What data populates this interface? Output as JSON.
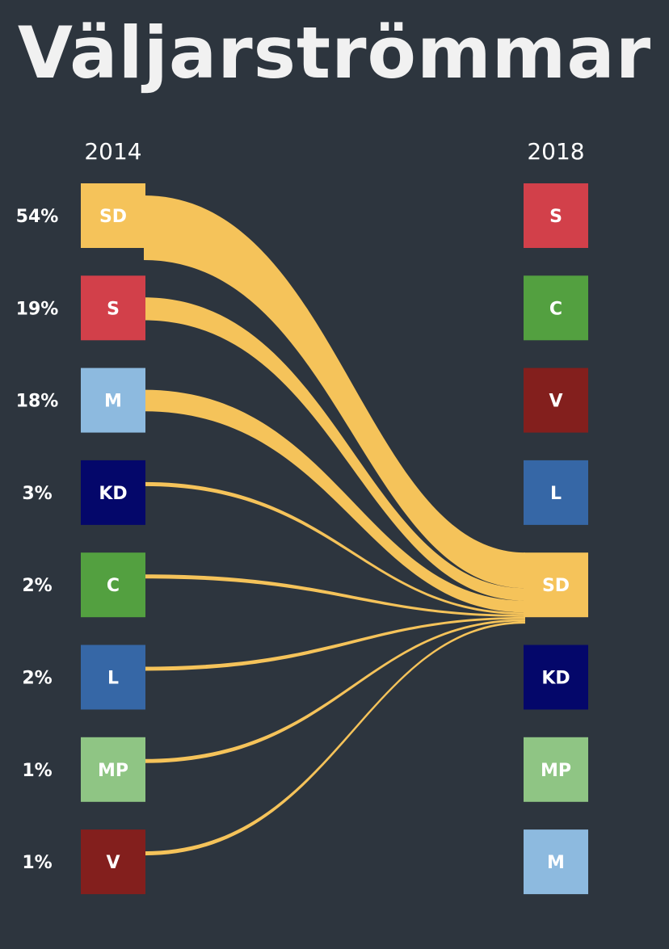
{
  "title": "Väljarströmmar",
  "chart_data": {
    "type": "sankey",
    "left": {
      "year": "2014",
      "parties": [
        {
          "label": "SD",
          "color": "#f5c35a",
          "share": "54%",
          "value": 54
        },
        {
          "label": "S",
          "color": "#d2404a",
          "share": "19%",
          "value": 19
        },
        {
          "label": "M",
          "color": "#8dbadf",
          "share": "18%",
          "value": 18
        },
        {
          "label": "KD",
          "color": "#04076a",
          "share": "3%",
          "value": 3
        },
        {
          "label": "C",
          "color": "#53a040",
          "share": "2%",
          "value": 2
        },
        {
          "label": "L",
          "color": "#3667a6",
          "share": "2%",
          "value": 2
        },
        {
          "label": "MP",
          "color": "#8fc584",
          "share": "1%",
          "value": 1
        },
        {
          "label": "V",
          "color": "#831f1d",
          "share": "1%",
          "value": 1
        }
      ]
    },
    "right": {
      "year": "2018",
      "parties": [
        {
          "label": "S",
          "color": "#d2404a"
        },
        {
          "label": "C",
          "color": "#53a040"
        },
        {
          "label": "V",
          "color": "#831f1d"
        },
        {
          "label": "L",
          "color": "#3667a6"
        },
        {
          "label": "SD",
          "color": "#f5c35a"
        },
        {
          "label": "KD",
          "color": "#04076a"
        },
        {
          "label": "MP",
          "color": "#8fc584"
        },
        {
          "label": "M",
          "color": "#8dbadf"
        }
      ]
    },
    "flow_color": "#f5c35a",
    "flows": [
      {
        "from": "SD",
        "to": "SD",
        "value": 54
      },
      {
        "from": "S",
        "to": "SD",
        "value": 19
      },
      {
        "from": "M",
        "to": "SD",
        "value": 18
      },
      {
        "from": "KD",
        "to": "SD",
        "value": 3
      },
      {
        "from": "C",
        "to": "SD",
        "value": 2
      },
      {
        "from": "L",
        "to": "SD",
        "value": 2
      },
      {
        "from": "MP",
        "to": "SD",
        "value": 1
      },
      {
        "from": "V",
        "to": "SD",
        "value": 1
      }
    ]
  }
}
